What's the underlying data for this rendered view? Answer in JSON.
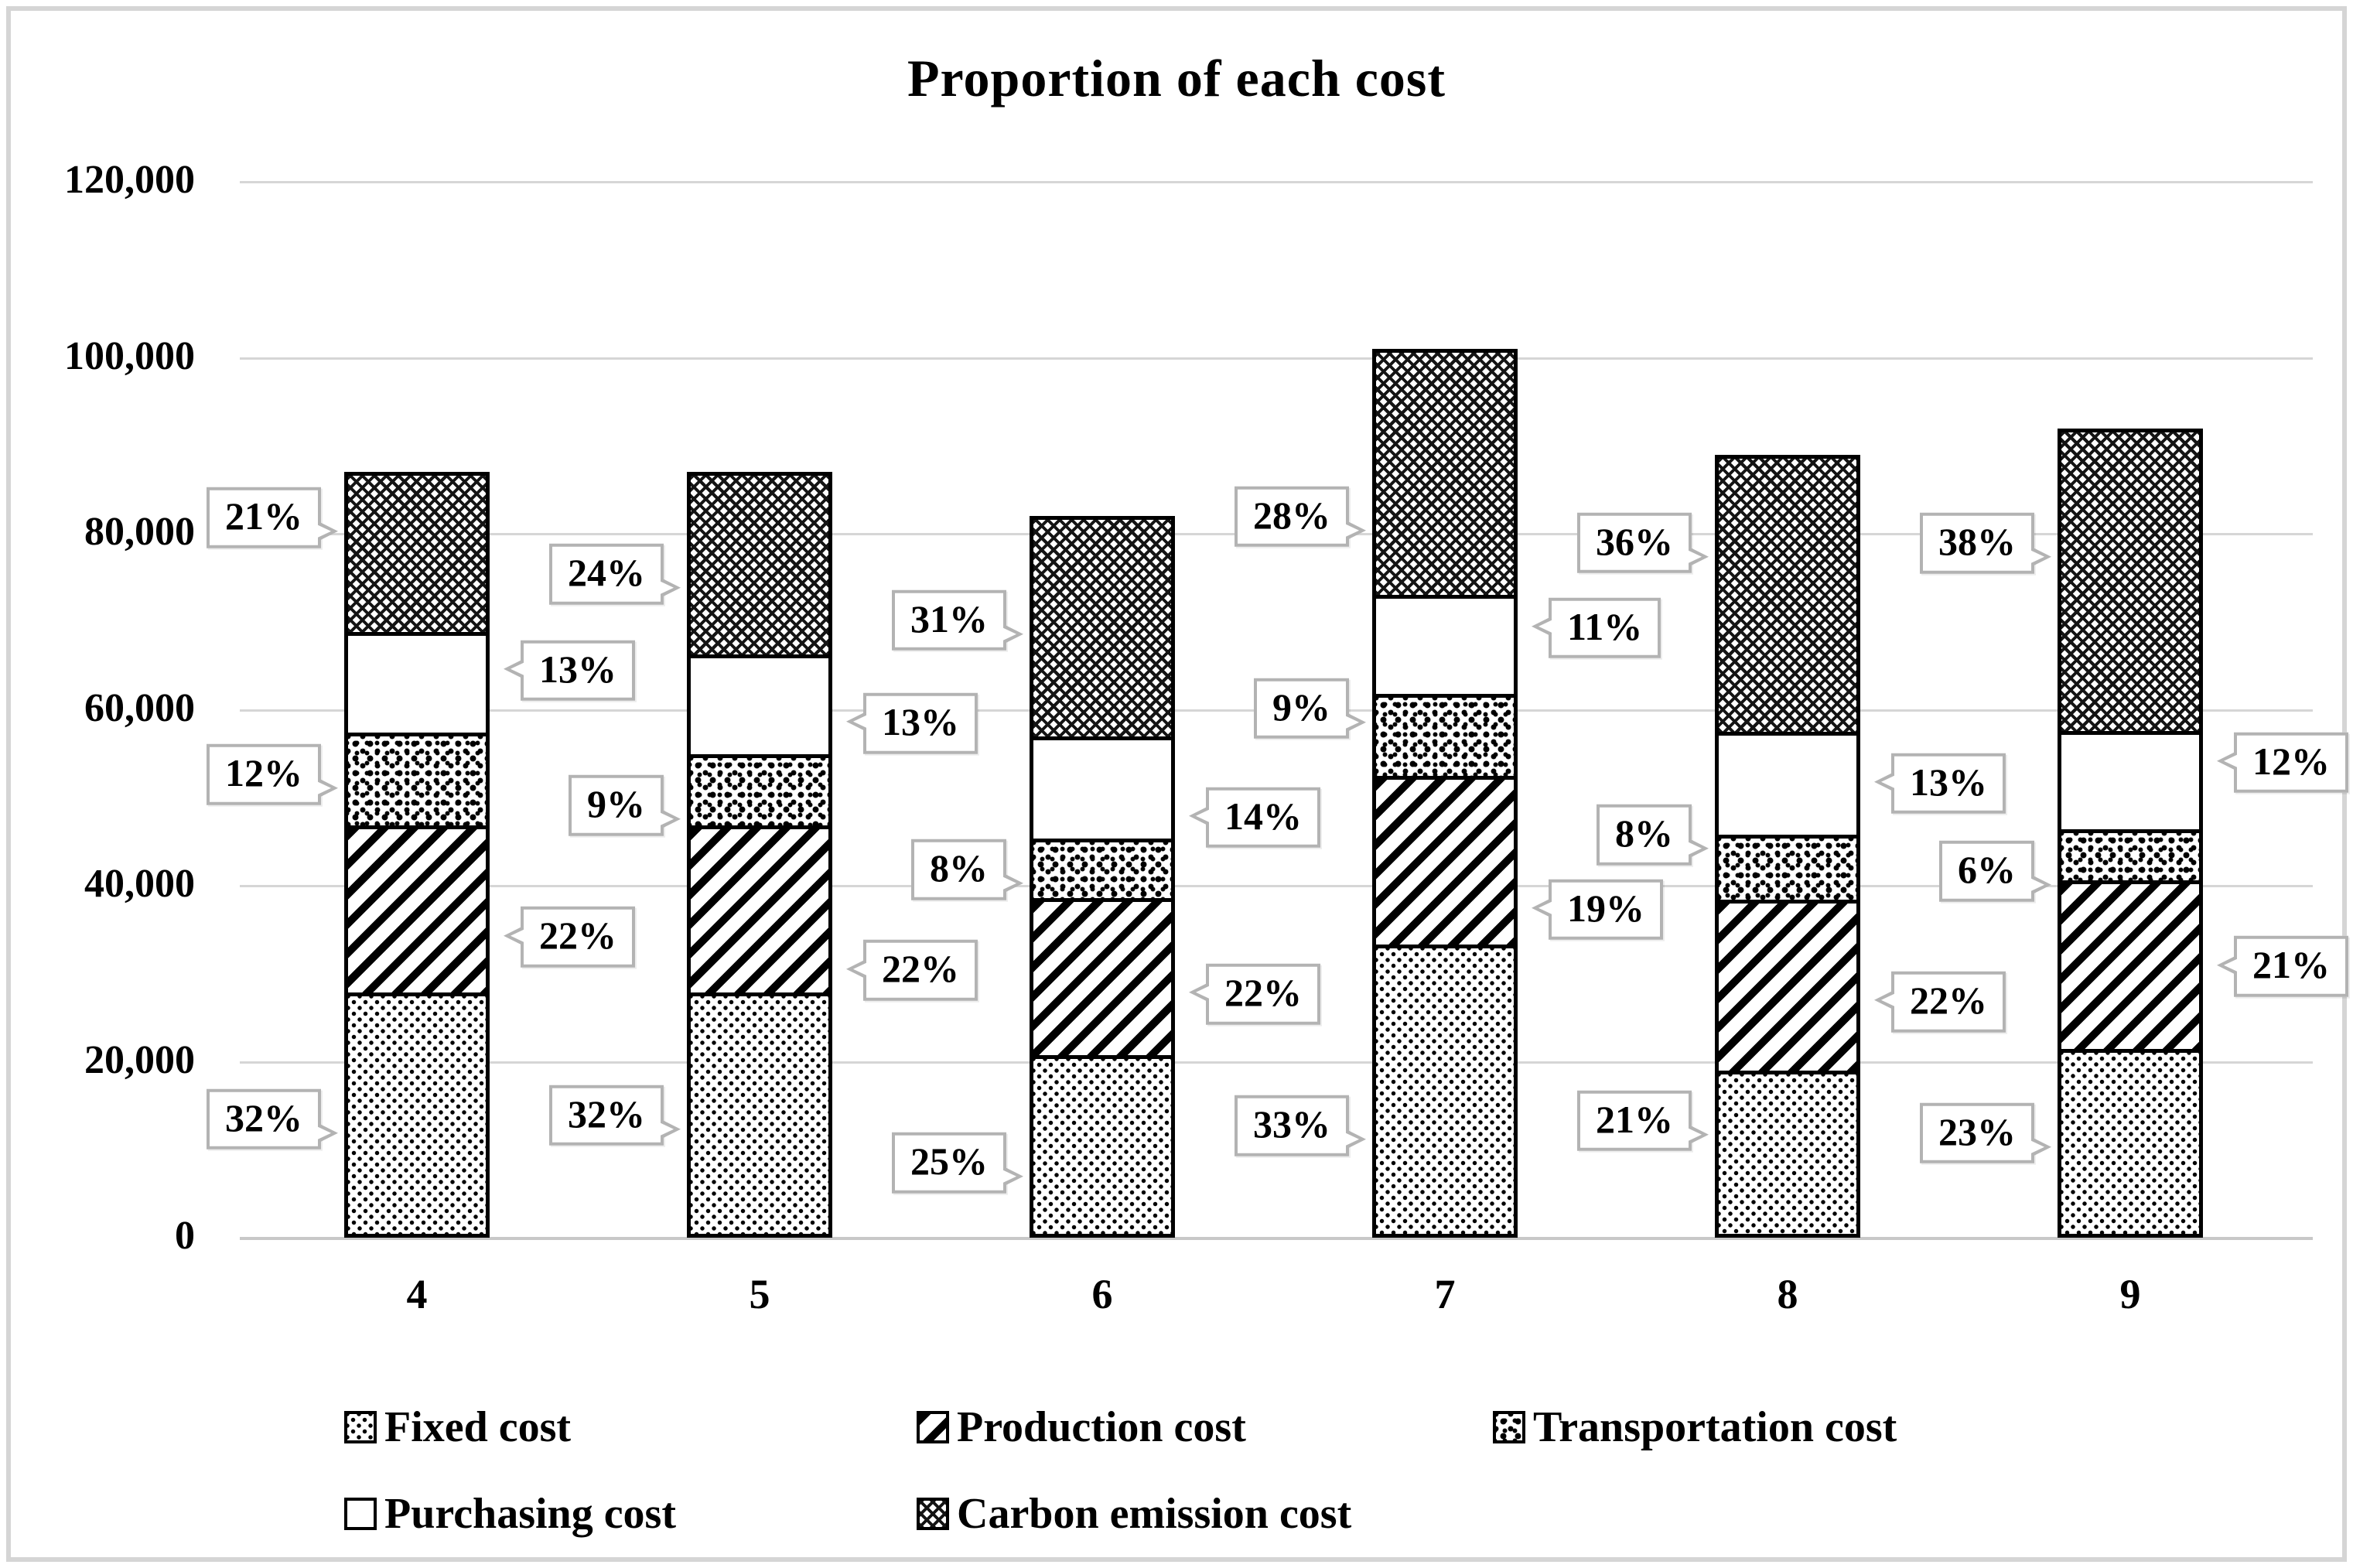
{
  "chart_data": {
    "type": "bar",
    "stacked": true,
    "title": "Proportion of each cost",
    "categories": [
      "4",
      "5",
      "6",
      "7",
      "8",
      "9"
    ],
    "bar_totals": [
      87000,
      87000,
      82000,
      101000,
      89000,
      92000
    ],
    "series": [
      {
        "name": "Fixed cost",
        "pattern": "fixed",
        "pct": [
          32,
          32,
          25,
          33,
          21,
          23
        ]
      },
      {
        "name": "Production cost",
        "pattern": "production",
        "pct": [
          22,
          22,
          22,
          19,
          22,
          21
        ]
      },
      {
        "name": "Transportation cost",
        "pattern": "transportation",
        "pct": [
          12,
          9,
          8,
          9,
          8,
          6
        ]
      },
      {
        "name": "Purchasing cost",
        "pattern": "purchasing",
        "pct": [
          13,
          13,
          14,
          11,
          13,
          12
        ]
      },
      {
        "name": "Carbon emission cost",
        "pattern": "carbon",
        "pct": [
          21,
          24,
          31,
          28,
          36,
          38
        ]
      }
    ],
    "data_label_unit": "%",
    "y_axis": {
      "min": 0,
      "max": 120000,
      "step": 20000,
      "tick_labels": [
        "0",
        "20,000",
        "40,000",
        "60,000",
        "80,000",
        "100,000",
        "120,000"
      ]
    },
    "x_axis": {
      "tick_labels": [
        "4",
        "5",
        "6",
        "7",
        "8",
        "9"
      ]
    },
    "grid": true,
    "legend_position": "bottom",
    "legend_rows": [
      [
        "Fixed cost",
        "Production cost",
        "Transportation cost"
      ],
      [
        "Purchasing cost",
        "Carbon emission cost"
      ]
    ]
  }
}
